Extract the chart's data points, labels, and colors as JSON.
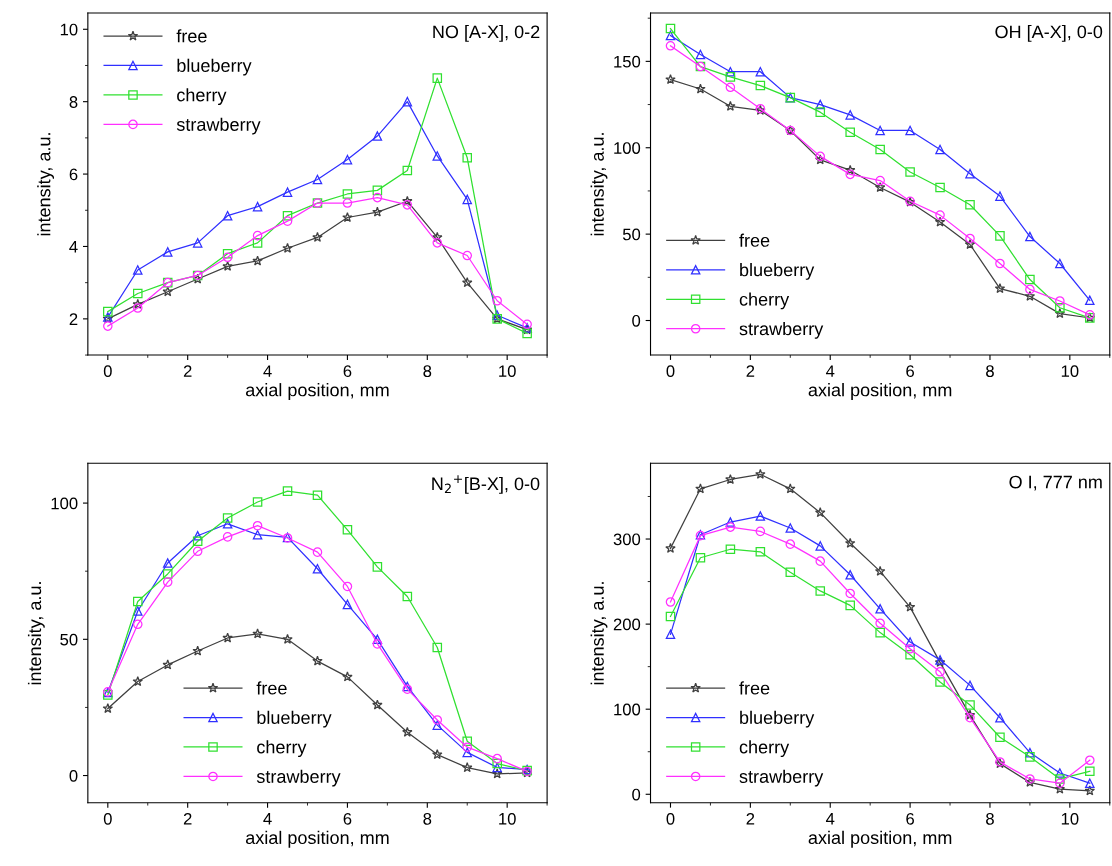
{
  "chart_data": [
    {
      "type": "line",
      "title": "NO [A-X], 0-2",
      "xlabel": "axial position, mm",
      "ylabel": "intensity, a.u.",
      "x": [
        0,
        0.75,
        1.5,
        2.25,
        3,
        3.75,
        4.5,
        5.25,
        6,
        6.75,
        7.5,
        8.25,
        9,
        9.75,
        10.5
      ],
      "xlim": [
        -0.5,
        11
      ],
      "xticks": [
        0,
        2,
        4,
        6,
        8,
        10
      ],
      "ylim": [
        1,
        10.45
      ],
      "yticks": [
        2,
        4,
        6,
        8,
        10
      ],
      "legend": "top left",
      "grid": false,
      "series": [
        {
          "name": "free",
          "color": "#404040",
          "marker": "star",
          "values": [
            2.0,
            2.4,
            2.75,
            3.1,
            3.45,
            3.6,
            3.95,
            4.25,
            4.8,
            4.95,
            5.25,
            4.25,
            3.0,
            2.0,
            1.7
          ]
        },
        {
          "name": "blueberry",
          "color": "#3030ff",
          "marker": "triangle",
          "values": [
            2.05,
            3.35,
            3.85,
            4.1,
            4.85,
            5.1,
            5.5,
            5.85,
            6.4,
            7.05,
            8.0,
            6.5,
            5.3,
            2.1,
            1.75
          ]
        },
        {
          "name": "cherry",
          "color": "#30e030",
          "marker": "square",
          "values": [
            2.2,
            2.7,
            3.0,
            3.2,
            3.8,
            4.1,
            4.85,
            5.2,
            5.45,
            5.55,
            6.1,
            8.65,
            6.45,
            2.0,
            1.6
          ]
        },
        {
          "name": "strawberry",
          "color": "#ff30ff",
          "marker": "circle",
          "values": [
            1.8,
            2.3,
            3.0,
            3.2,
            3.7,
            4.3,
            4.7,
            5.2,
            5.2,
            5.35,
            5.15,
            4.1,
            3.75,
            2.5,
            1.85
          ]
        }
      ]
    },
    {
      "type": "line",
      "title": "OH [A-X], 0-0",
      "xlabel": "axial position, mm",
      "ylabel": "intensity, a.u.",
      "x": [
        0,
        0.75,
        1.5,
        2.25,
        3,
        3.75,
        4.5,
        5.25,
        6,
        6.75,
        7.5,
        8.25,
        9,
        9.75,
        10.5
      ],
      "xlim": [
        -0.5,
        11
      ],
      "xticks": [
        0,
        2,
        4,
        6,
        8,
        10
      ],
      "ylim": [
        -20,
        178
      ],
      "yticks": [
        0,
        50,
        100,
        150
      ],
      "legend": "bottom left",
      "grid": false,
      "series": [
        {
          "name": "free",
          "color": "#404040",
          "marker": "star",
          "values": [
            139.5,
            134,
            124,
            121.6,
            110,
            93,
            87,
            77,
            68.5,
            57,
            44,
            18.5,
            14,
            4,
            1.5
          ]
        },
        {
          "name": "blueberry",
          "color": "#3030ff",
          "marker": "triangle",
          "values": [
            165,
            154,
            144,
            144,
            129,
            125,
            119,
            110,
            110,
            99,
            85,
            72,
            48.6,
            33,
            11.7
          ]
        },
        {
          "name": "cherry",
          "color": "#30e030",
          "marker": "square",
          "values": [
            169,
            147,
            141,
            136,
            129,
            120.6,
            109,
            99,
            86,
            77,
            67,
            49,
            23.7,
            7.4,
            1.5
          ]
        },
        {
          "name": "strawberry",
          "color": "#ff30ff",
          "marker": "circle",
          "values": [
            159,
            147,
            135,
            122.6,
            110,
            95,
            84.6,
            81,
            69,
            61,
            47.5,
            33,
            18,
            11.3,
            3.3
          ]
        }
      ]
    },
    {
      "type": "line",
      "title": "N$_{2}$$^{+}$[B-X], 0-0",
      "xlabel": "axial position, mm",
      "ylabel": "intensity, a.u.",
      "x": [
        0,
        0.75,
        1.5,
        2.25,
        3,
        3.75,
        4.5,
        5.25,
        6,
        6.75,
        7.5,
        8.25,
        9,
        9.75,
        10.5
      ],
      "xlim": [
        -0.5,
        11
      ],
      "xticks": [
        0,
        2,
        4,
        6,
        8,
        10
      ],
      "ylim": [
        -10,
        114.6
      ],
      "yticks": [
        0,
        50,
        100
      ],
      "legend": "bottom",
      "grid": false,
      "series": [
        {
          "name": "free",
          "color": "#404040",
          "marker": "star",
          "values": [
            24.6,
            34.5,
            40.6,
            45.7,
            50.5,
            52,
            50,
            42,
            36.2,
            25.9,
            15.9,
            7.7,
            2.9,
            0.6,
            1
          ]
        },
        {
          "name": "blueberry",
          "color": "#3030ff",
          "marker": "triangle",
          "values": [
            30.5,
            60.4,
            78,
            88,
            92.4,
            88.4,
            87.4,
            75.9,
            62.8,
            50,
            32.7,
            18.5,
            8.5,
            3,
            2.2
          ]
        },
        {
          "name": "cherry",
          "color": "#30e030",
          "marker": "square",
          "values": [
            29.6,
            63.9,
            74,
            86,
            94.5,
            100.4,
            104.4,
            102.9,
            90.2,
            76.6,
            65.7,
            47,
            12.6,
            4.4,
            1.8
          ]
        },
        {
          "name": "strawberry",
          "color": "#ff30ff",
          "marker": "circle",
          "values": [
            30.7,
            55.5,
            71,
            82.3,
            87.6,
            91.7,
            87.2,
            82,
            69.4,
            48.3,
            31.7,
            20.4,
            10.4,
            6.2,
            1.5
          ]
        }
      ]
    },
    {
      "type": "line",
      "title": "O I, 777 nm",
      "xlabel": "axial position, mm",
      "ylabel": "intensity, a.u.",
      "x": [
        0,
        0.75,
        1.5,
        2.25,
        3,
        3.75,
        4.5,
        5.25,
        6,
        6.75,
        7.5,
        8.25,
        9,
        9.75,
        10.5
      ],
      "xlim": [
        -0.5,
        11
      ],
      "xticks": [
        0,
        2,
        4,
        6,
        8,
        10
      ],
      "ylim": [
        -10,
        389
      ],
      "yticks": [
        0,
        100,
        200,
        300
      ],
      "legend": "bottom left",
      "grid": false,
      "series": [
        {
          "name": "free",
          "color": "#404040",
          "marker": "star",
          "values": [
            289,
            359,
            370,
            376,
            359,
            331,
            295,
            262,
            220,
            155,
            93,
            36,
            14,
            6,
            4
          ]
        },
        {
          "name": "blueberry",
          "color": "#3030ff",
          "marker": "triangle",
          "values": [
            188,
            305,
            320,
            327,
            313,
            292,
            258,
            218,
            179,
            158,
            128,
            90,
            49,
            25,
            13
          ]
        },
        {
          "name": "cherry",
          "color": "#30e030",
          "marker": "square",
          "values": [
            209,
            278,
            288,
            285,
            261,
            239,
            222,
            190,
            164,
            132,
            105,
            67,
            44,
            18,
            27
          ]
        },
        {
          "name": "strawberry",
          "color": "#ff30ff",
          "marker": "circle",
          "values": [
            226,
            304,
            314,
            309,
            294,
            274,
            236,
            201,
            171,
            144,
            90,
            38,
            18,
            13,
            40
          ]
        }
      ]
    }
  ]
}
